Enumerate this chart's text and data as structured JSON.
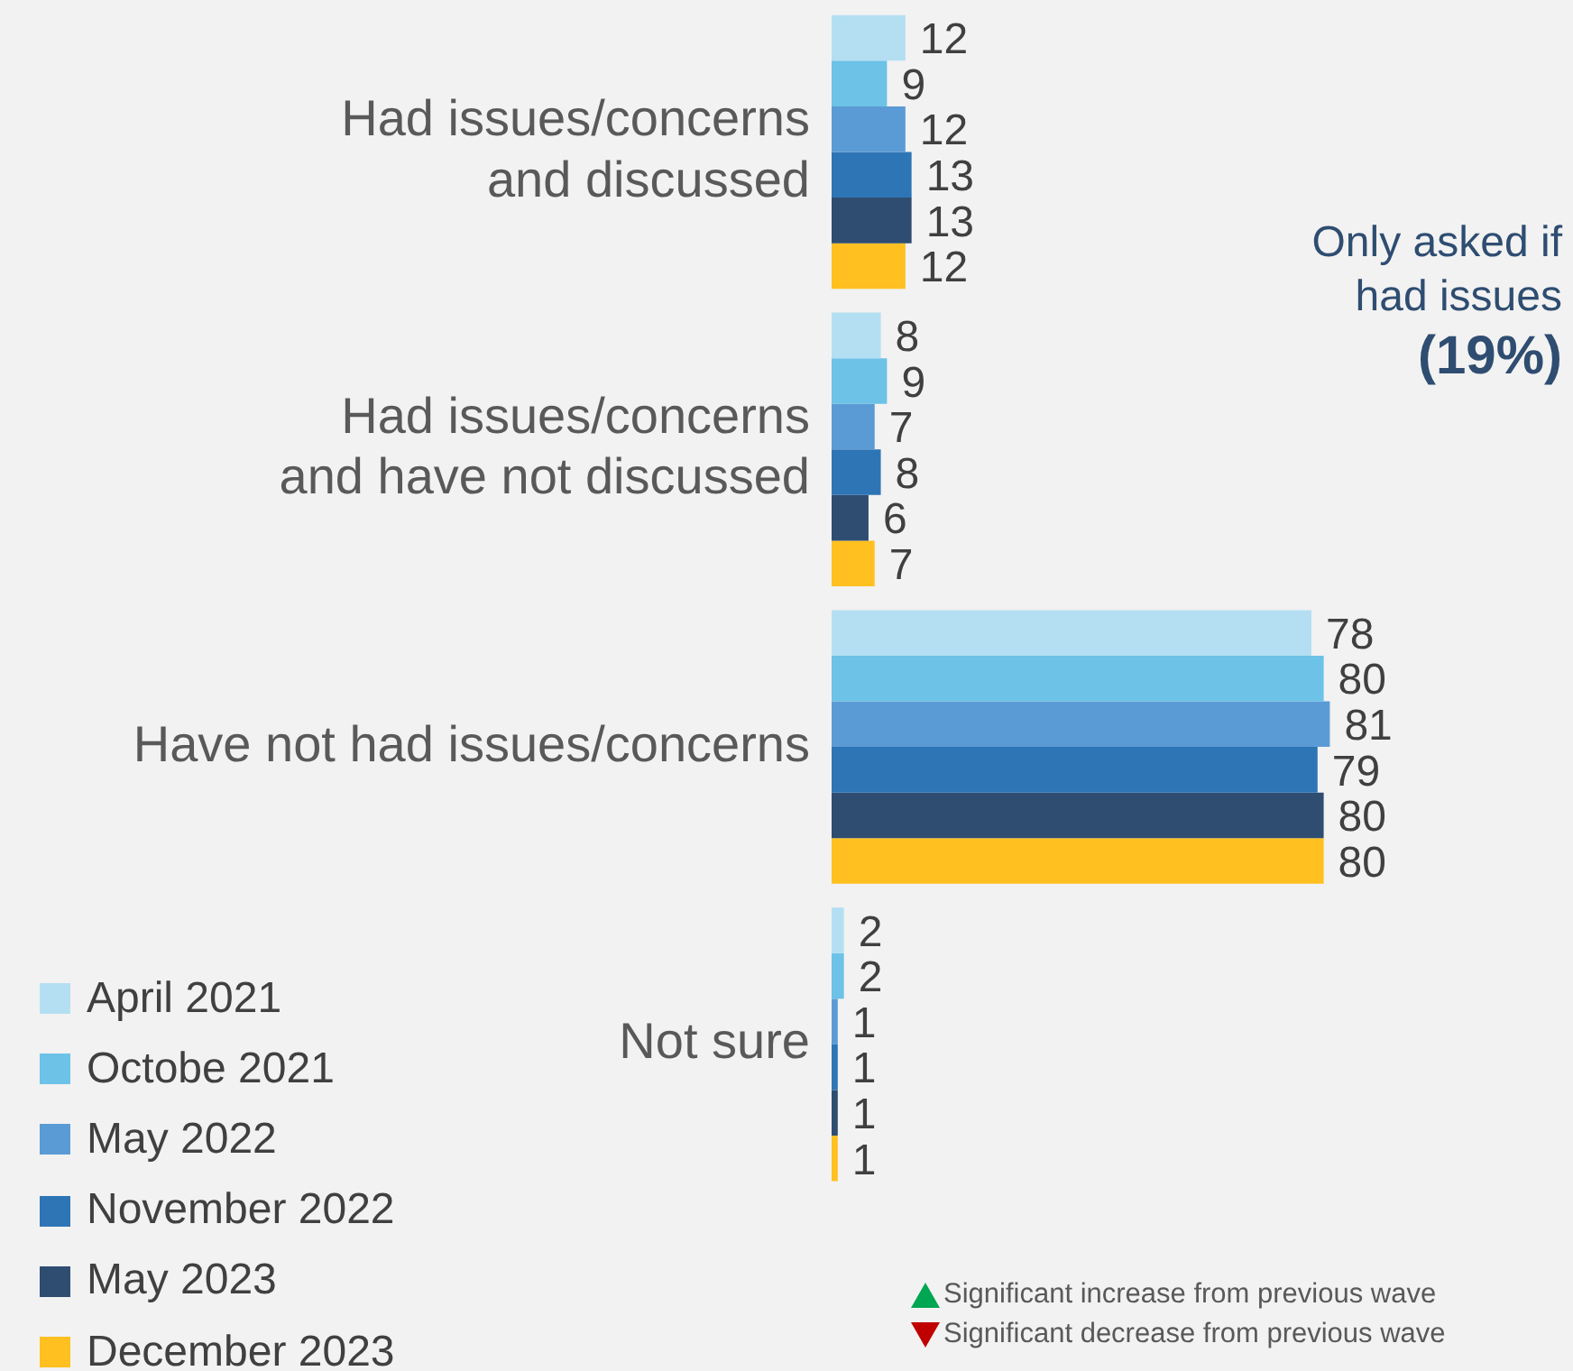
{
  "chart_data": {
    "type": "bar",
    "orientation": "horizontal",
    "categories": [
      "Had issues/concerns\nand discussed",
      "Had issues/concerns\nand have not discussed",
      "Have not had issues/concerns",
      "Not sure"
    ],
    "series": [
      {
        "name": "April 2021",
        "color": "#b4dff2",
        "values": [
          12,
          8,
          78,
          2
        ]
      },
      {
        "name": "Octobe 2021",
        "color": "#6cc2e7",
        "values": [
          9,
          9,
          80,
          2
        ]
      },
      {
        "name": "May 2022",
        "color": "#5b9bd5",
        "values": [
          12,
          7,
          81,
          1
        ]
      },
      {
        "name": "November 2022",
        "color": "#2e75b6",
        "values": [
          13,
          8,
          79,
          1
        ]
      },
      {
        "name": "May 2023",
        "color": "#2f4d71",
        "values": [
          13,
          6,
          80,
          1
        ]
      },
      {
        "name": "December 2023",
        "color": "#ffc020",
        "values": [
          12,
          7,
          80,
          1
        ]
      }
    ],
    "data_labels": true,
    "legend": "bottom left",
    "annotations": [
      "Only asked if had issues",
      "(19%)",
      "Significant increase from previous wave",
      "Significant decrease from previous wave"
    ]
  }
}
